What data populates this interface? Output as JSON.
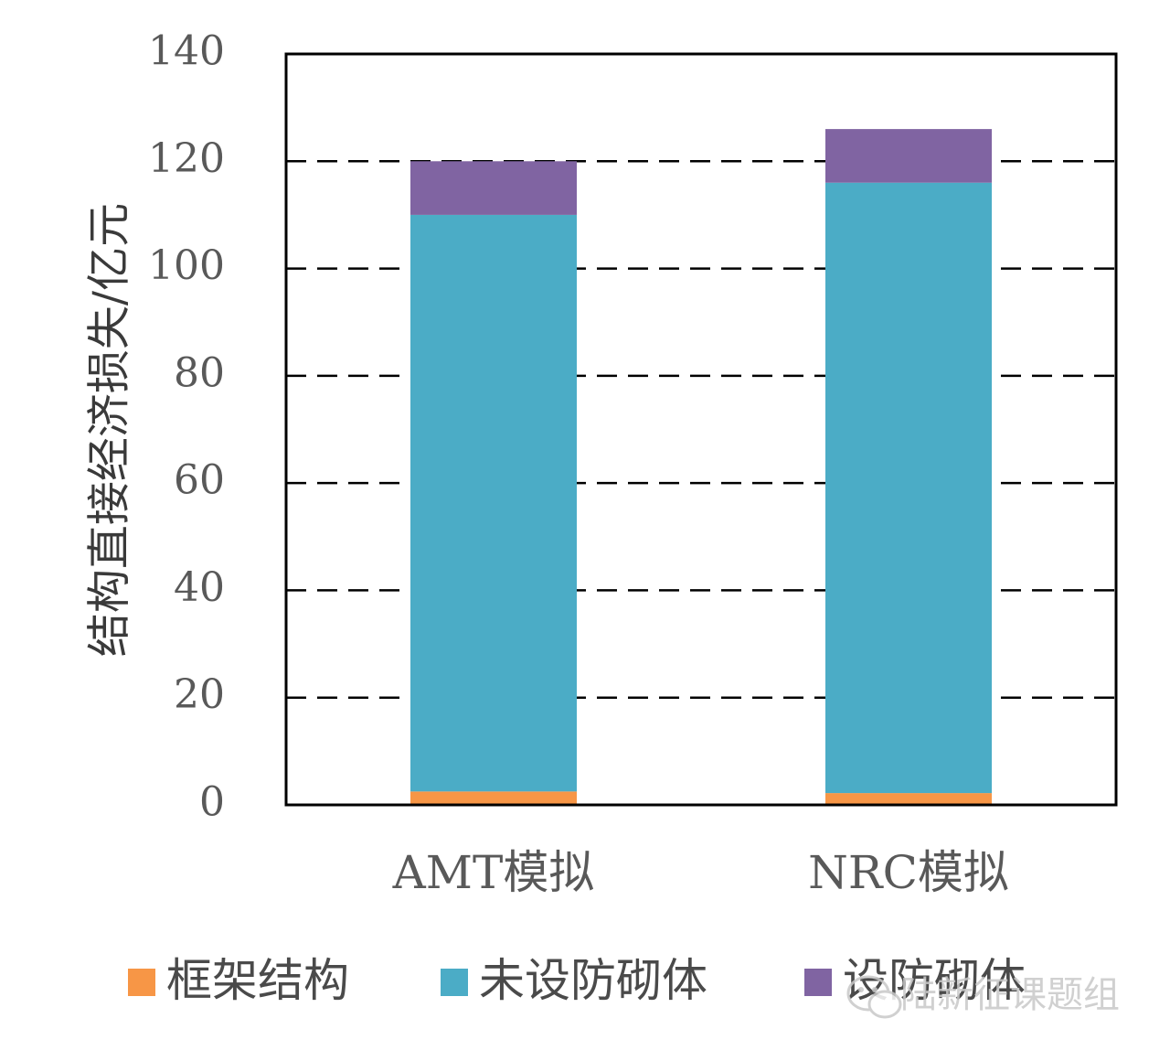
{
  "chart_data": {
    "type": "bar",
    "stacked": true,
    "categories": [
      "AMT模拟",
      "NRC模拟"
    ],
    "series": [
      {
        "name": "框架结构",
        "values": [
          2.5,
          2.2
        ],
        "color": "#F79646"
      },
      {
        "name": "未设防砌体",
        "values": [
          107.5,
          113.8
        ],
        "color": "#4BACC6"
      },
      {
        "name": "设防砌体",
        "values": [
          10,
          10
        ],
        "color": "#8064A2"
      }
    ],
    "ylabel": "结构直接经济损失/亿元",
    "xlabel": "",
    "ylim": [
      0,
      140
    ],
    "yticks": [
      0,
      20,
      40,
      60,
      80,
      100,
      120,
      140
    ],
    "grid": "dashed horizontal",
    "legend_position": "bottom"
  },
  "watermark": {
    "text": "陆新征课题组",
    "icon": "wechat-icon"
  }
}
